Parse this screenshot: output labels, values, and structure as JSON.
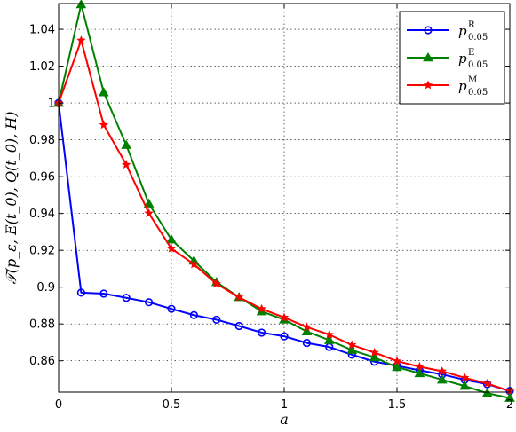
{
  "chart_data": {
    "type": "line",
    "xlabel": "a",
    "ylabel": "𝒯(p_ε, E(t_0), Q(t_0), H)",
    "xlim": [
      0,
      2
    ],
    "ylim": [
      0.843,
      1.054
    ],
    "x_ticks": [
      "0",
      "0.5",
      "1",
      "1.5",
      "2"
    ],
    "y_ticks": [
      "0.86",
      "0.88",
      "0.9",
      "0.92",
      "0.94",
      "0.96",
      "0.98",
      "1",
      "1.02",
      "1.04"
    ],
    "grid": true,
    "legend_position": "top-right",
    "x": [
      0,
      0.1,
      0.2,
      0.3,
      0.4,
      0.5,
      0.6,
      0.7,
      0.8,
      0.9,
      1.0,
      1.1,
      1.2,
      1.3,
      1.4,
      1.5,
      1.6,
      1.7,
      1.8,
      1.9,
      2.0
    ],
    "series": [
      {
        "name": "p",
        "sup": "R",
        "sub": "0.05",
        "color": "#0000ff",
        "marker": "circle",
        "values": [
          1.0,
          0.897,
          0.8965,
          0.8942,
          0.8918,
          0.8882,
          0.8848,
          0.8823,
          0.8789,
          0.8753,
          0.8733,
          0.8697,
          0.8675,
          0.8633,
          0.8595,
          0.8573,
          0.8548,
          0.8526,
          0.8497,
          0.8473,
          0.8436
        ]
      },
      {
        "name": "p",
        "sup": "E",
        "sub": "0.05",
        "color": "#008000",
        "marker": "triangle",
        "values": [
          1.0,
          1.0535,
          1.0057,
          0.9771,
          0.9453,
          0.9258,
          0.9143,
          0.9027,
          0.8945,
          0.8868,
          0.8823,
          0.8759,
          0.8712,
          0.8658,
          0.8618,
          0.8565,
          0.8532,
          0.8497,
          0.8463,
          0.8424,
          0.8398
        ]
      },
      {
        "name": "p",
        "sup": "M",
        "sub": "0.05",
        "color": "#ff0000",
        "marker": "star",
        "values": [
          1.0,
          1.034,
          0.9881,
          0.9665,
          0.9401,
          0.9209,
          0.9124,
          0.9018,
          0.8945,
          0.8882,
          0.8835,
          0.8783,
          0.8742,
          0.8686,
          0.8645,
          0.8598,
          0.8568,
          0.8543,
          0.8508,
          0.8476,
          0.8436
        ]
      }
    ]
  }
}
